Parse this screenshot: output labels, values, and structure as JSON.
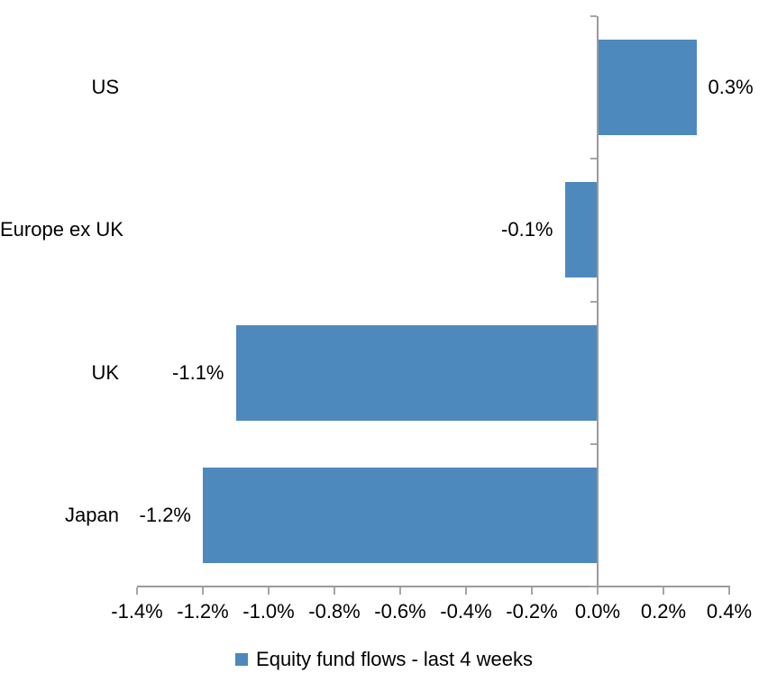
{
  "chart_data": {
    "type": "bar",
    "orientation": "horizontal",
    "title": "",
    "categories": [
      "US",
      "Europe ex UK",
      "UK",
      "Japan"
    ],
    "values": [
      0.3,
      -0.1,
      -1.1,
      -1.2
    ],
    "value_labels": [
      "0.3%",
      "-0.1%",
      "-1.1%",
      "-1.2%"
    ],
    "series_name": "Equity fund flows - last 4 weeks",
    "unit": "%",
    "xlim": [
      -1.4,
      0.4
    ],
    "x_tick_step": 0.2,
    "x_tick_values": [
      -1.4,
      -1.2,
      -1.0,
      -0.8,
      -0.6,
      -0.4,
      -0.2,
      0.0,
      0.2,
      0.4
    ],
    "x_tick_labels": [
      "-1.4%",
      "-1.2%",
      "-1.0%",
      "-0.8%",
      "-0.6%",
      "-0.4%",
      "-0.2%",
      "0.0%",
      "0.2%",
      "0.4%"
    ],
    "grid": false,
    "legend_position": "bottom",
    "colors": {
      "bar": "#4E89BE",
      "axis_line": "#9B9B9B",
      "tick": "#A6A6A6",
      "text": "#000000",
      "background": "#FFFFFF"
    }
  }
}
